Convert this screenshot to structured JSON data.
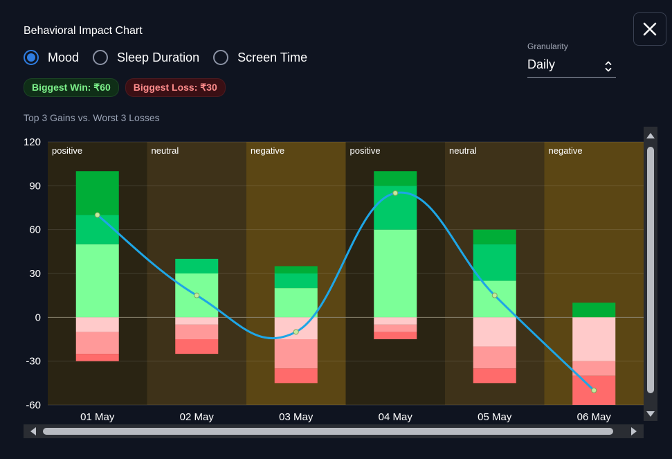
{
  "header": {
    "title": "Behavioral Impact Chart"
  },
  "radios": [
    {
      "label": "Mood",
      "checked": true
    },
    {
      "label": "Sleep Duration",
      "checked": false
    },
    {
      "label": "Screen Time",
      "checked": false
    }
  ],
  "badges": {
    "win": "Biggest Win: ₹60",
    "loss": "Biggest Loss: ₹30"
  },
  "granularity": {
    "label": "Granularity",
    "value": "Daily"
  },
  "icons": {
    "close": "close-icon",
    "select": "chevron-up-down-icon",
    "scroll_up": "arrow-up-icon",
    "scroll_down": "arrow-down-icon",
    "scroll_left": "arrow-left-icon",
    "scroll_right": "arrow-right-icon"
  },
  "chart_data": {
    "type": "bar",
    "subtitle": "Top 3 Gains vs. Worst 3 Losses",
    "categories": [
      "01 May",
      "02 May",
      "03 May",
      "04 May",
      "05 May",
      "06 May"
    ],
    "category_labels": [
      "positive",
      "neutral",
      "negative",
      "positive",
      "neutral",
      "negative"
    ],
    "ylim": [
      -60,
      120
    ],
    "yticks": [
      120,
      90,
      60,
      30,
      0,
      -30,
      -60
    ],
    "grid": true,
    "gains": [
      [
        50,
        20,
        30
      ],
      [
        30,
        10,
        0
      ],
      [
        20,
        10,
        5
      ],
      [
        60,
        30,
        10
      ],
      [
        25,
        25,
        10
      ],
      [
        0,
        0,
        10
      ]
    ],
    "losses": [
      [
        -10,
        -15,
        -5
      ],
      [
        -5,
        -10,
        -10
      ],
      [
        -15,
        -20,
        -10
      ],
      [
        -5,
        -5,
        -5
      ],
      [
        -20,
        -15,
        -10
      ],
      [
        -30,
        -10,
        -20
      ]
    ],
    "line": {
      "values": [
        70,
        15,
        -10,
        85,
        15,
        -50
      ]
    },
    "colors": {
      "gain": [
        "#7cff98",
        "#00c968",
        "#00ad37"
      ],
      "loss": [
        "#ffcaca",
        "#ff9999",
        "#ff6b6b"
      ],
      "line": "#1ea6e6",
      "band_positive": "#2a2413",
      "band_neutral": "#3e3219",
      "band_negative": "#5b4614"
    }
  }
}
